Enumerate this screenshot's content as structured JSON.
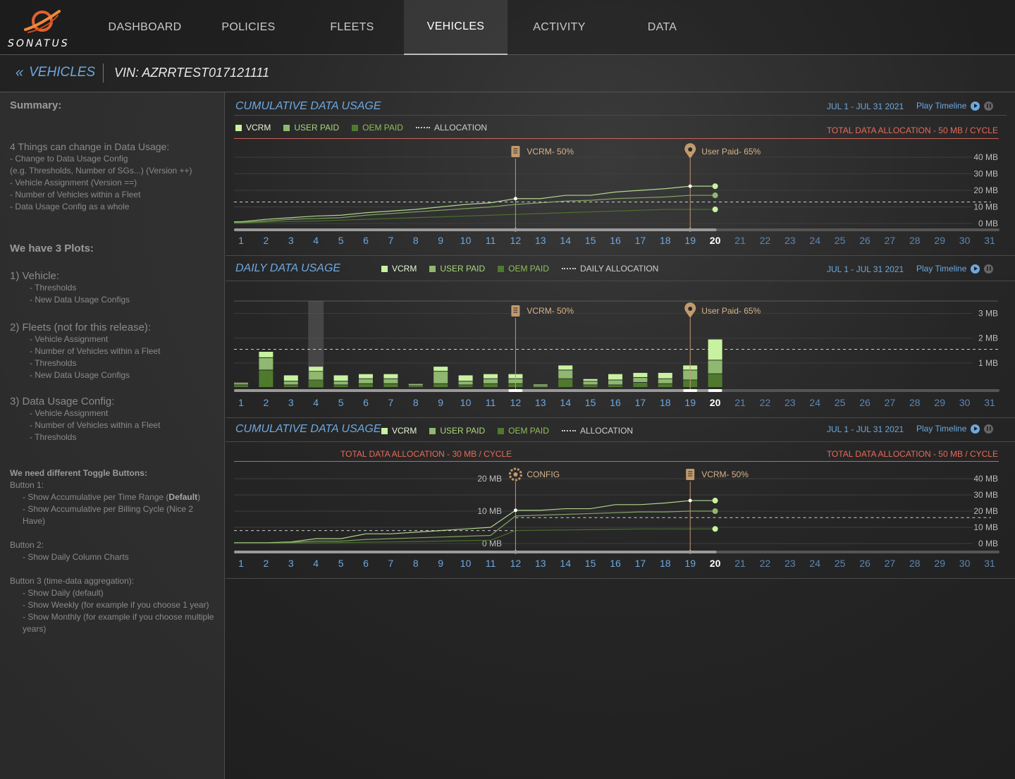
{
  "brand": {
    "name": "SONATUS"
  },
  "nav": {
    "tabs": [
      {
        "label": "DASHBOARD",
        "active": false
      },
      {
        "label": "POLICIES",
        "active": false
      },
      {
        "label": "FLEETS",
        "active": false
      },
      {
        "label": "VEHICLES",
        "active": true
      },
      {
        "label": "ACTIVITY",
        "active": false
      },
      {
        "label": "DATA",
        "active": false
      }
    ]
  },
  "breadcrumb": {
    "back_label": "VEHICLES",
    "back_icon": "double-chevron-left-icon",
    "vin": "VIN: AZRRTEST017121111"
  },
  "notes": {
    "summary_title": "Summary:",
    "intro": "4 Things can change in Data Usage:",
    "changes": [
      "- Change to Data Usage Config",
      "(e.g. Thresholds, Number of SGs...)  (Version ++)",
      "- Vehicle Assignment (Version ==)",
      "- Number of Vehicles within a Fleet",
      "- Data Usage Config as a whole"
    ],
    "plots_title": "We have 3 Plots:",
    "plots": [
      {
        "title": "1)   Vehicle:",
        "items": [
          "- Thresholds",
          "- New Data Usage Configs"
        ]
      },
      {
        "title": "2)  Fleets (not for this release):",
        "items": [
          "- Vehicle Assignment",
          "- Number of Vehicles within a Fleet",
          "- Thresholds",
          "- New Data Usage Configs"
        ]
      },
      {
        "title": "3)  Data Usage Config:",
        "items": [
          "- Vehicle Assignment",
          "- Number of Vehicles within a Fleet",
          "- Thresholds"
        ]
      }
    ],
    "toggles_title": "We need different Toggle Buttons:",
    "button1_label": "Button 1:",
    "button1_item1_pre": "- Show Accumulative per Time Range (",
    "button1_item1_bold": "Default",
    "button1_item1_post": ")",
    "button1_item2": "- Show Accumulative per Billing Cycle (Nice 2 Have)",
    "button2_label": "Button 2:",
    "button2_item1": "- Show Daily Column Charts",
    "button3_label": "Button 3 (time-data aggregation):",
    "button3_items": [
      "- Show Daily (default)",
      "- Show Weekly (for example if you choose 1 year)",
      "- Show Monthly (for example if you choose multiple years)"
    ]
  },
  "colors": {
    "vcrm": "#c9f2a0",
    "user_paid": "#8fb870",
    "oem_paid": "#4f7a2e",
    "marker": "#c29a6e",
    "alloc_red": "#e8695a",
    "blue": "#6da8e0"
  },
  "legend": {
    "vcrm": "VCRM",
    "user_paid": "USER PAID",
    "oem_paid": "OEM PAID",
    "allocation": "ALLOCATION",
    "daily_allocation": "DAILY ALLOCATION"
  },
  "panels": {
    "p1": {
      "title": "CUMULATIVE DATA USAGE",
      "range": "JUL 1 - JUL 31 2021",
      "play_label": "Play Timeline",
      "alloc_right": "TOTAL DATA ALLOCATION - 50 MB / CYCLE"
    },
    "p2": {
      "title": "DAILY DATA USAGE",
      "range": "JUL 1 - JUL 31 2021",
      "play_label": "Play Timeline"
    },
    "p3": {
      "title": "CUMULATIVE DATA USAGE",
      "range": "JUL 1 - JUL 31 2021",
      "play_label": "Play Timeline",
      "alloc_left": "TOTAL DATA ALLOCATION - 30 MB / CYCLE",
      "alloc_right": "TOTAL DATA ALLOCATION - 50 MB / CYCLE"
    }
  },
  "chart_data": [
    {
      "type": "line",
      "title": "CUMULATIVE DATA USAGE",
      "x": [
        1,
        2,
        3,
        4,
        5,
        6,
        7,
        8,
        9,
        10,
        11,
        12,
        13,
        14,
        15,
        16,
        17,
        18,
        19,
        20
      ],
      "x_ticks": [
        1,
        2,
        3,
        4,
        5,
        6,
        7,
        8,
        9,
        10,
        11,
        12,
        13,
        14,
        15,
        16,
        17,
        18,
        19,
        20,
        21,
        22,
        23,
        24,
        25,
        26,
        27,
        28,
        29,
        30,
        31
      ],
      "current_day": 20,
      "y_ticks": [
        "40 MB",
        "30 MB",
        "20 MB",
        "10 MB",
        "0 MB"
      ],
      "ylim": [
        0,
        40
      ],
      "allocation": 13,
      "series": [
        {
          "name": "VCRM",
          "values": [
            1,
            2.5,
            3.5,
            4.5,
            5,
            6.5,
            7.5,
            8.5,
            10,
            11.5,
            12.5,
            15,
            15,
            17,
            17,
            19,
            20,
            21,
            22.5,
            22.5
          ]
        },
        {
          "name": "USER PAID",
          "values": [
            0.5,
            1.5,
            2.5,
            3,
            3.5,
            5,
            6,
            7,
            8,
            9,
            10,
            11.5,
            12.5,
            13.5,
            14,
            15,
            15.5,
            16,
            17,
            17
          ]
        },
        {
          "name": "OEM PAID",
          "values": [
            0.3,
            0.8,
            1.2,
            1.5,
            2,
            2.5,
            3,
            3.5,
            4,
            4.5,
            5,
            5.5,
            6,
            6.5,
            7,
            7.5,
            8,
            8.5,
            8.5,
            8.5
          ]
        }
      ],
      "markers": [
        {
          "day": 12,
          "label": "VCRM- 50%",
          "icon": "document-icon"
        },
        {
          "day": 19,
          "label": "User Paid- 65%",
          "icon": "location-pin-icon"
        }
      ]
    },
    {
      "type": "bar",
      "title": "DAILY DATA USAGE",
      "categories": [
        1,
        2,
        3,
        4,
        5,
        6,
        7,
        8,
        9,
        10,
        11,
        12,
        13,
        14,
        15,
        16,
        17,
        18,
        19,
        20
      ],
      "x_ticks": [
        1,
        2,
        3,
        4,
        5,
        6,
        7,
        8,
        9,
        10,
        11,
        12,
        13,
        14,
        15,
        16,
        17,
        18,
        19,
        20,
        21,
        22,
        23,
        24,
        25,
        26,
        27,
        28,
        29,
        30,
        31
      ],
      "current_day": 20,
      "highlighted_day": 4,
      "y_ticks": [
        "3 MB",
        "2 MB",
        "1 MB"
      ],
      "ylim": [
        0,
        3.5
      ],
      "daily_allocation": 1.55,
      "series": [
        {
          "name": "OEM PAID",
          "values": [
            0.1,
            0.7,
            0.1,
            0.3,
            0.1,
            0.15,
            0.15,
            0.05,
            0.15,
            0.1,
            0.15,
            0.15,
            0.05,
            0.35,
            0.1,
            0.1,
            0.2,
            0.15,
            0.3,
            0.55
          ]
        },
        {
          "name": "USER PAID",
          "values": [
            0.05,
            0.5,
            0.15,
            0.35,
            0.15,
            0.2,
            0.2,
            0.05,
            0.5,
            0.15,
            0.2,
            0.2,
            0.03,
            0.35,
            0.15,
            0.2,
            0.2,
            0.2,
            0.4,
            0.55
          ]
        },
        {
          "name": "VCRM",
          "values": [
            0.05,
            0.25,
            0.25,
            0.2,
            0.25,
            0.2,
            0.2,
            0.05,
            0.2,
            0.25,
            0.2,
            0.2,
            0.05,
            0.2,
            0.1,
            0.25,
            0.2,
            0.25,
            0.2,
            0.85
          ]
        }
      ],
      "markers": [
        {
          "day": 12,
          "label": "VCRM- 50%",
          "icon": "document-icon"
        },
        {
          "day": 19,
          "label": "User Paid- 65%",
          "icon": "location-pin-icon"
        }
      ]
    },
    {
      "type": "line",
      "title": "CUMULATIVE DATA USAGE",
      "x": [
        1,
        2,
        3,
        4,
        5,
        6,
        7,
        8,
        9,
        10,
        11,
        12,
        13,
        14,
        15,
        16,
        17,
        18,
        19,
        20
      ],
      "x_ticks": [
        1,
        2,
        3,
        4,
        5,
        6,
        7,
        8,
        9,
        10,
        11,
        12,
        13,
        14,
        15,
        16,
        17,
        18,
        19,
        20,
        21,
        22,
        23,
        24,
        25,
        26,
        27,
        28,
        29,
        30,
        31
      ],
      "current_day": 20,
      "config_change_day": 12,
      "y_ticks_left": [
        "20 MB",
        "10 MB",
        "0 MB"
      ],
      "ylim_left": [
        0,
        20
      ],
      "allocation_left": 4,
      "y_ticks_right": [
        "40 MB",
        "30 MB",
        "20 MB",
        "10 MB",
        "0 MB"
      ],
      "ylim_right": [
        0,
        40
      ],
      "allocation_right": 16,
      "series": [
        {
          "name": "VCRM",
          "values": [
            0.5,
            0.5,
            1,
            3,
            3,
            6,
            6,
            7,
            8,
            9,
            10,
            20.5,
            20.5,
            21.5,
            21.5,
            24,
            24,
            25,
            26.5,
            26.5
          ]
        },
        {
          "name": "USER PAID",
          "values": [
            0.3,
            0.3,
            0.7,
            1.5,
            1.5,
            2.5,
            3,
            3.5,
            4,
            4.5,
            5,
            17,
            17.5,
            18,
            18.5,
            19,
            19.5,
            19.5,
            20,
            20
          ]
        },
        {
          "name": "OEM PAID",
          "values": [
            0.2,
            0.2,
            0.3,
            0.5,
            0.6,
            0.8,
            1,
            1.2,
            1.5,
            1.8,
            2,
            8,
            8.2,
            8.4,
            8.6,
            8.8,
            9,
            9,
            9,
            9
          ]
        }
      ],
      "markers": [
        {
          "day": 12,
          "label": "CONFIG",
          "icon": "gear-icon"
        },
        {
          "day": 19,
          "label": "VCRM- 50%",
          "icon": "document-icon"
        }
      ]
    }
  ]
}
